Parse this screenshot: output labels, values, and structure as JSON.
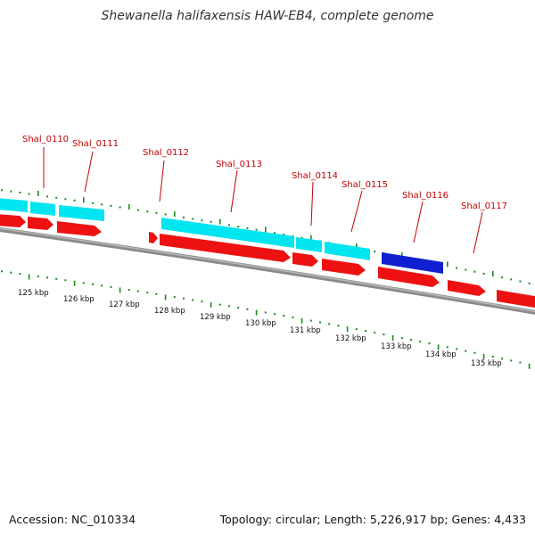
{
  "title": "Shewanella halifaxensis HAW-EB4, complete genome",
  "footer": {
    "accession": "Accession: NC_010334",
    "summary": "Topology: circular; Length: 5,226,917 bp; Genes: 4,433"
  },
  "colors": {
    "forward_gene": "#ee1111",
    "cds_feature": "#00e5f0",
    "highlight_feature": "#1020d0",
    "label": "#c40000",
    "ticks": "#1a8a1a",
    "backbone": "#8a8a8a"
  },
  "gene_labels": [
    "Shal_0110",
    "Shal_0111",
    "Shal_0112",
    "Shal_0113",
    "Shal_0114",
    "Shal_0115",
    "Shal_0116",
    "Shal_0117"
  ],
  "kbp_labels": [
    "125 kbp",
    "126 kbp",
    "127 kbp",
    "128 kbp",
    "129 kbp",
    "130 kbp",
    "131 kbp",
    "132 kbp",
    "133 kbp",
    "134 kbp",
    "135 kbp"
  ]
}
